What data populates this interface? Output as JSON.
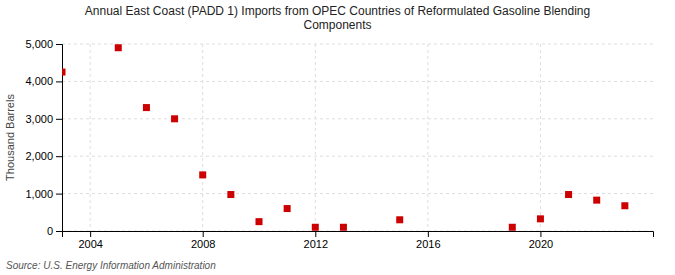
{
  "chart_data": {
    "type": "scatter",
    "title": "Annual East Coast (PADD 1) Imports from OPEC Countries of Reformulated Gasoline Blending\nComponents",
    "y_label": "Thousand Barrels",
    "annotations": [
      "Source: U.S. Energy Information Administration"
    ],
    "x": [
      2003,
      2005,
      2006,
      2007,
      2008,
      2009,
      2010,
      2011,
      2012,
      2013,
      2015,
      2019,
      2020,
      2021,
      2022,
      2023
    ],
    "values": [
      4250,
      4900,
      3300,
      3000,
      1500,
      975,
      250,
      600,
      100,
      100,
      300,
      100,
      325,
      975,
      825,
      675
    ],
    "color": "#cc0000",
    "marker": "square",
    "xlim": [
      2003,
      2024
    ],
    "ylim": [
      0,
      5000
    ],
    "xticks": [
      2004,
      2008,
      2012,
      2016,
      2020
    ],
    "yticks": [
      0,
      {
        "value": 1000,
        "label": "1,000"
      },
      {
        "value": 2000,
        "label": "2,000"
      },
      {
        "value": 3000,
        "label": "3,000"
      },
      {
        "value": 4000,
        "label": "4,000"
      },
      {
        "value": 5000,
        "label": "5,000"
      }
    ],
    "grid": true
  }
}
